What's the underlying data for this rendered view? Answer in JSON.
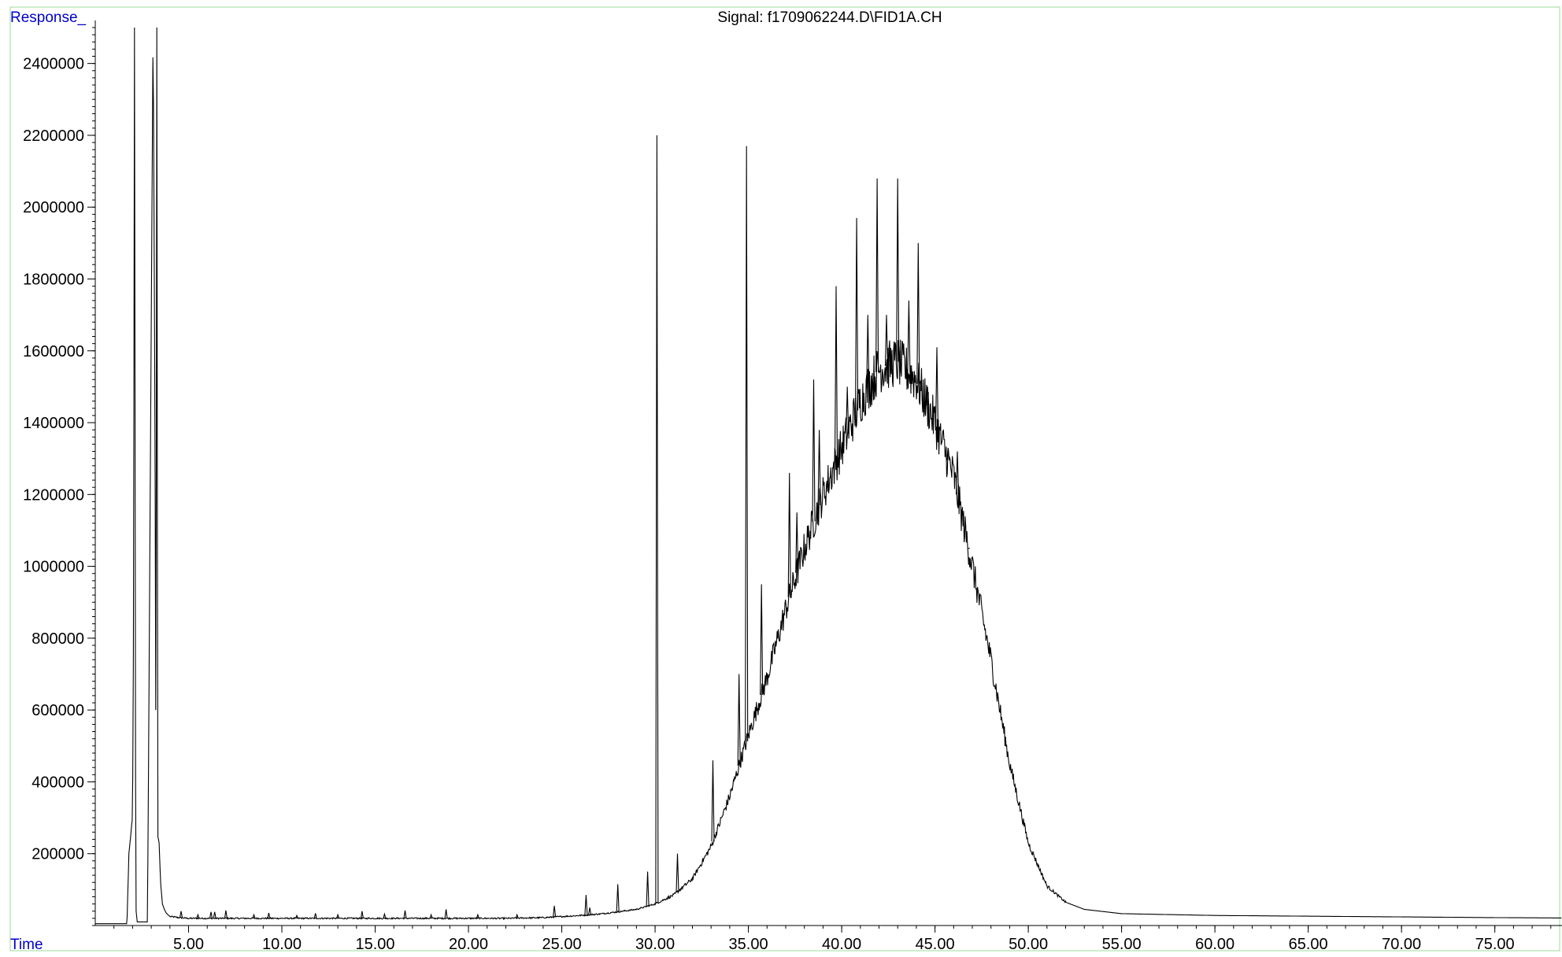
{
  "header": {
    "response_label": "Response_",
    "signal_title": "Signal: f1709062244.D\\FID1A.CH",
    "time_label": "Time"
  },
  "colors": {
    "axis_label": "#0000cc",
    "trace": "#000000",
    "frame_border": "#99dd99"
  },
  "chart_data": {
    "type": "line",
    "title": "Signal: f1709062244.D\\FID1A.CH",
    "xlabel": "Time",
    "ylabel": "Response_",
    "xlim": [
      0,
      78.6
    ],
    "ylim": [
      0,
      2500000
    ],
    "grid": false,
    "legend": "none",
    "x_ticks": [
      5,
      10,
      15,
      20,
      25,
      30,
      35,
      40,
      45,
      50,
      55,
      60,
      65,
      70,
      75
    ],
    "x_tick_labels": [
      "5.00",
      "10.00",
      "15.00",
      "20.00",
      "25.00",
      "30.00",
      "35.00",
      "40.00",
      "45.00",
      "50.00",
      "55.00",
      "60.00",
      "65.00",
      "70.00",
      "75.00"
    ],
    "y_ticks": [
      200000,
      400000,
      600000,
      800000,
      1000000,
      1200000,
      1400000,
      1600000,
      1800000,
      2000000,
      2200000,
      2400000
    ],
    "y_tick_labels": [
      "200000",
      "400000",
      "600000",
      "800000",
      "1000000",
      "1200000",
      "1400000",
      "1600000",
      "1800000",
      "2000000",
      "2200000",
      "2400000"
    ],
    "series": [
      {
        "x": [
          0.0,
          1.7,
          1.75,
          1.8,
          1.9,
          1.95,
          2.0,
          2.05,
          2.1,
          2.13,
          2.17,
          2.25,
          2.5,
          2.8,
          3.1,
          3.2,
          3.25,
          3.3,
          3.35,
          3.42,
          3.5,
          3.6,
          3.7,
          3.8,
          3.9,
          4.0,
          4.5,
          5.0,
          6.0,
          8.0,
          10.0,
          12.0,
          15.0,
          18.0,
          20.0,
          22.0,
          24.0,
          25.0,
          26.0,
          27.0,
          28.0,
          29.0,
          30.0,
          31.0,
          32.0,
          33.0,
          34.0,
          35.0,
          36.0,
          37.0,
          38.0,
          39.0,
          40.0,
          41.0,
          42.0,
          43.0,
          44.0,
          45.0,
          46.0,
          47.0,
          48.0,
          49.0,
          50.0,
          51.0,
          52.0,
          53.0,
          55.0,
          60.0,
          65.0,
          70.0,
          75.0,
          78.6
        ],
        "y": [
          5000,
          5000,
          100000,
          200000,
          250000,
          280000,
          300000,
          860000,
          2500000,
          1500000,
          50000,
          10000,
          10000,
          10000,
          2500000,
          1400000,
          400000,
          2500000,
          250000,
          230000,
          120000,
          60000,
          45000,
          35000,
          30000,
          25000,
          22000,
          20000,
          20000,
          20000,
          20000,
          20000,
          20000,
          20000,
          20000,
          20000,
          22000,
          25000,
          28000,
          32000,
          38000,
          45000,
          60000,
          85000,
          130000,
          220000,
          360000,
          530000,
          690000,
          880000,
          1050000,
          1200000,
          1330000,
          1460000,
          1550000,
          1570000,
          1520000,
          1400000,
          1250000,
          1000000,
          740000,
          450000,
          230000,
          110000,
          65000,
          45000,
          33000,
          28000,
          26000,
          24000,
          22000,
          21000
        ]
      }
    ],
    "sharp_peaks": [
      {
        "x": 4.6,
        "y": 40000
      },
      {
        "x": 5.5,
        "y": 30000
      },
      {
        "x": 6.2,
        "y": 38000
      },
      {
        "x": 6.4,
        "y": 38000
      },
      {
        "x": 7.0,
        "y": 42000
      },
      {
        "x": 8.5,
        "y": 30000
      },
      {
        "x": 9.3,
        "y": 35000
      },
      {
        "x": 10.8,
        "y": 28000
      },
      {
        "x": 11.8,
        "y": 34000
      },
      {
        "x": 13.0,
        "y": 30000
      },
      {
        "x": 14.3,
        "y": 40000
      },
      {
        "x": 15.5,
        "y": 32000
      },
      {
        "x": 16.6,
        "y": 42000
      },
      {
        "x": 18.0,
        "y": 30000
      },
      {
        "x": 18.8,
        "y": 45000
      },
      {
        "x": 20.5,
        "y": 30000
      },
      {
        "x": 22.6,
        "y": 30000
      },
      {
        "x": 24.6,
        "y": 55000
      },
      {
        "x": 26.3,
        "y": 85000
      },
      {
        "x": 26.5,
        "y": 50000
      },
      {
        "x": 28.0,
        "y": 115000
      },
      {
        "x": 29.6,
        "y": 150000
      },
      {
        "x": 30.1,
        "y": 2200000
      },
      {
        "x": 31.2,
        "y": 200000
      },
      {
        "x": 33.1,
        "y": 460000
      },
      {
        "x": 34.5,
        "y": 700000
      },
      {
        "x": 34.9,
        "y": 2170000
      },
      {
        "x": 35.7,
        "y": 950000
      },
      {
        "x": 37.2,
        "y": 1260000
      },
      {
        "x": 37.6,
        "y": 1150000
      },
      {
        "x": 38.5,
        "y": 1520000
      },
      {
        "x": 38.8,
        "y": 1380000
      },
      {
        "x": 39.7,
        "y": 1780000
      },
      {
        "x": 40.3,
        "y": 1500000
      },
      {
        "x": 40.8,
        "y": 1970000
      },
      {
        "x": 41.4,
        "y": 1700000
      },
      {
        "x": 41.9,
        "y": 2080000
      },
      {
        "x": 42.4,
        "y": 1700000
      },
      {
        "x": 43.0,
        "y": 2080000
      },
      {
        "x": 43.6,
        "y": 1740000
      },
      {
        "x": 44.1,
        "y": 1900000
      },
      {
        "x": 44.6,
        "y": 1500000
      },
      {
        "x": 45.1,
        "y": 1610000
      },
      {
        "x": 45.7,
        "y": 1330000
      },
      {
        "x": 46.2,
        "y": 1320000
      },
      {
        "x": 46.8,
        "y": 1050000
      }
    ]
  }
}
